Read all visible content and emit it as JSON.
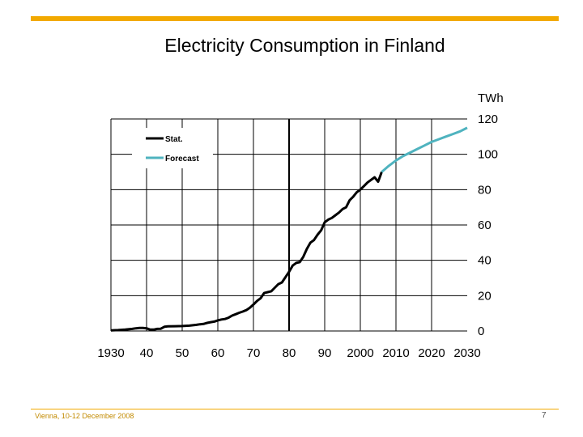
{
  "slide": {
    "title": "Electricity Consumption in Finland",
    "footer_left": "Vienna, 10-12 December 2008",
    "page_number": "7",
    "accent_color": "#f2a900"
  },
  "chart_data": {
    "type": "line",
    "title": "Electricity Consumption in Finland",
    "ylabel": "TWh",
    "xlabel": "",
    "xlim": [
      1930,
      2030
    ],
    "ylim": [
      0,
      120
    ],
    "x_tick_labels": [
      "1930",
      "40",
      "50",
      "60",
      "70",
      "80",
      "90",
      "2000",
      "2010",
      "2020",
      "2030"
    ],
    "x_tick_values": [
      1930,
      1940,
      1950,
      1960,
      1970,
      1980,
      1990,
      2000,
      2010,
      2020,
      2030
    ],
    "y_tick_labels": [
      "0",
      "20",
      "40",
      "60",
      "80",
      "100",
      "120"
    ],
    "y_tick_values": [
      0,
      20,
      40,
      60,
      80,
      100,
      120
    ],
    "grid": true,
    "legend_position": "top-left",
    "series": [
      {
        "name": "Stat.",
        "color": "#000000",
        "x": [
          1930,
          1932,
          1934,
          1936,
          1937,
          1938,
          1939,
          1940,
          1941,
          1942,
          1943,
          1944,
          1945,
          1946,
          1948,
          1950,
          1952,
          1954,
          1955,
          1956,
          1957,
          1958,
          1959,
          1960,
          1961,
          1962,
          1963,
          1964,
          1965,
          1966,
          1967,
          1968,
          1969,
          1970,
          1971,
          1972,
          1973,
          1974,
          1975,
          1976,
          1977,
          1978,
          1979,
          1980,
          1981,
          1982,
          1983,
          1984,
          1985,
          1986,
          1987,
          1988,
          1989,
          1990,
          1991,
          1992,
          1993,
          1994,
          1995,
          1996,
          1997,
          1998,
          1999,
          2000,
          2001,
          2002,
          2003,
          2004,
          2005,
          2006
        ],
        "y": [
          0.3,
          0.5,
          0.8,
          1.2,
          1.5,
          1.7,
          1.7,
          1.5,
          0.8,
          0.8,
          1.2,
          1.3,
          2.4,
          2.6,
          2.7,
          2.8,
          3.0,
          3.5,
          3.8,
          4.0,
          4.6,
          5.0,
          5.3,
          6.0,
          6.5,
          6.8,
          7.5,
          8.7,
          9.5,
          10.3,
          11.0,
          11.8,
          13.2,
          15.0,
          17.0,
          18.5,
          21.5,
          22.0,
          22.5,
          24.5,
          26.5,
          27.5,
          30.5,
          33.5,
          37.0,
          38.5,
          39.0,
          42.0,
          46.5,
          50.0,
          51.5,
          54.5,
          57.0,
          61.5,
          63.0,
          64.0,
          65.5,
          67.0,
          69.0,
          70.0,
          74.0,
          76.0,
          78.5,
          80.0,
          82.0,
          84.0,
          85.5,
          87.0,
          84.5,
          90.0
        ]
      },
      {
        "name": "Forecast",
        "color": "#4fb3bf",
        "x": [
          2006,
          2008,
          2010,
          2012,
          2014,
          2016,
          2018,
          2020,
          2022,
          2024,
          2026,
          2028,
          2030
        ],
        "y": [
          90.0,
          93.5,
          96.5,
          99.0,
          101.0,
          103.0,
          105.0,
          107.0,
          108.5,
          110.0,
          111.5,
          113.0,
          115.0
        ]
      }
    ]
  }
}
